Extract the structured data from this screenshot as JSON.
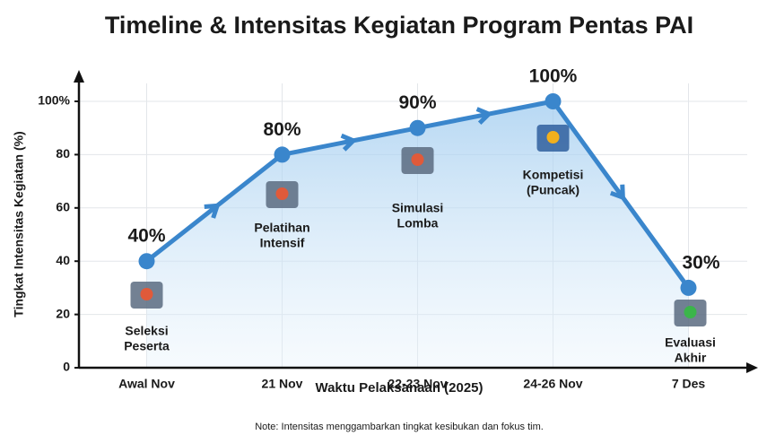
{
  "chart_data": {
    "type": "line",
    "title": "Timeline & Intensitas Kegiatan Program Pentas PAI",
    "x_label": "Waktu Pelaksanaan (2025)",
    "y_label": "Tingkat Intensitas Kegiatan (%)",
    "note": "Note: Intensitas menggambarkan tingkat kesibukan dan fokus tim.",
    "categories": [
      "Awal Nov",
      "21 Nov",
      "22-23 Nov",
      "24-26 Nov",
      "7 Des"
    ],
    "values": [
      40,
      80,
      90,
      100,
      30
    ],
    "value_labels": [
      "40%",
      "80%",
      "90%",
      "100%",
      "30%"
    ],
    "stage_labels": [
      [
        "Seleksi",
        "Peserta"
      ],
      [
        "Pelatihan",
        "Intensif"
      ],
      [
        "Simulasi",
        "Lomba"
      ],
      [
        "Kompetisi",
        "(Puncak)"
      ],
      [
        "Evaluasi",
        "Akhir"
      ]
    ],
    "color": "#3a86cc",
    "ylim": [
      0,
      100
    ],
    "yticks": [
      0,
      20,
      40,
      60,
      80,
      {
        "value": 100,
        "label": "100%"
      }
    ],
    "grid": true
  }
}
